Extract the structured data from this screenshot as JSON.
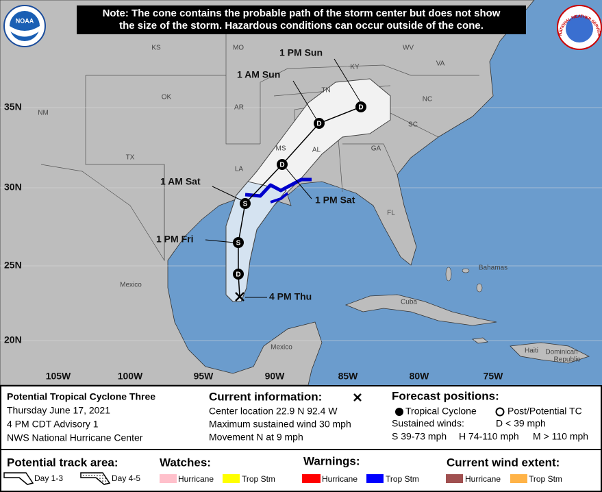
{
  "note": [
    "Note: The cone contains the probable path of the storm center but does not show",
    "the size of the storm. Hazardous conditions can occur outside of the cone."
  ],
  "logos": {
    "noaa": "NOAA",
    "nws": "NATIONAL WEATHER SERVICE"
  },
  "map_labels": [
    "KS",
    "MO",
    "KY",
    "WV",
    "VA",
    "OK",
    "TN",
    "NC",
    "NM",
    "AR",
    "SC",
    "TX",
    "MS",
    "AL",
    "GA",
    "LA",
    "FL",
    "Mexico",
    "Bahamas",
    "Cuba",
    "Mexico",
    "Haiti",
    "Dominican",
    "Republic"
  ],
  "latitudes": [
    "35N",
    "30N",
    "25N",
    "20N"
  ],
  "longitudes": [
    "105W",
    "100W",
    "95W",
    "90W",
    "85W",
    "80W",
    "75W"
  ],
  "track": [
    {
      "time": "1 PM Sun",
      "marker": "D"
    },
    {
      "time": "1 AM Sun",
      "marker": "D"
    },
    {
      "time": null,
      "marker": "D"
    },
    {
      "time": "1 PM Sat",
      "marker": null
    },
    {
      "time": "1 AM Sat",
      "marker": "S"
    },
    {
      "time": "1 PM Fri",
      "marker": "S"
    },
    {
      "time": null,
      "marker": "D"
    },
    {
      "time": "4 PM Thu",
      "marker": null
    }
  ],
  "info": {
    "storm": "Potential Tropical Cyclone Three",
    "date": "Thursday June 17, 2021",
    "advisory": "4 PM CDT Advisory 1",
    "center": "NWS National Hurricane Center",
    "current_heading": "Current information:",
    "current_lines": [
      "Center location 22.9 N 92.4 W",
      "Maximum sustained wind 30 mph",
      "Movement N at 9 mph"
    ],
    "forecast_heading": "Forecast positions:",
    "tc": "Tropical Cyclone",
    "post": "Post/Potential TC",
    "winds_label": "Sustained winds:",
    "winds": [
      "D < 39 mph",
      "S 39-73 mph",
      "H 74-110 mph",
      "M > 110 mph"
    ]
  },
  "legend": {
    "track_heading": "Potential track area:",
    "day13": "Day 1-3",
    "day45": "Day 4-5",
    "watches": "Watches:",
    "warnings": "Warnings:",
    "wind_extent": "Current wind extent:",
    "hurricane": "Hurricane",
    "trop_stm": "Trop Stm"
  }
}
